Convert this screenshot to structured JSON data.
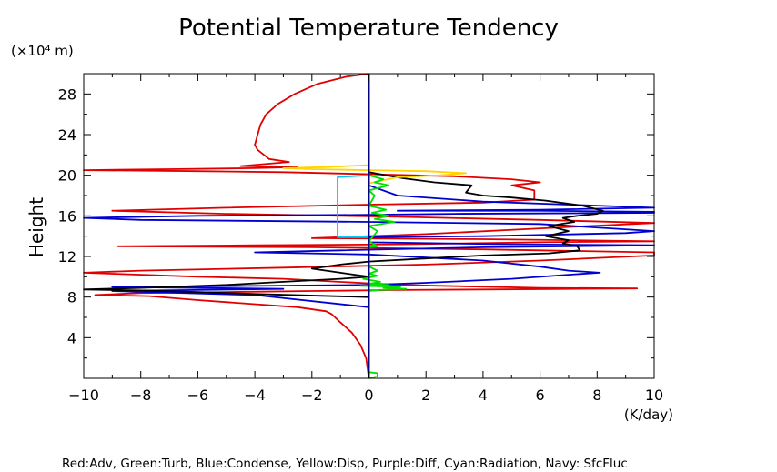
{
  "chart_data": {
    "type": "line",
    "title": "Potential Temperature Tendency",
    "y_unit_label": "(×10⁴ m)",
    "ylabel": "Height",
    "x_unit_label": "(K/day)",
    "xlim": [
      -10,
      10
    ],
    "ylim": [
      0,
      30
    ],
    "x_ticks": [
      -10,
      -8,
      -6,
      -4,
      -2,
      0,
      2,
      4,
      6,
      8,
      10
    ],
    "x_tick_labels": [
      "−10",
      "−8",
      "−6",
      "−4",
      "−2",
      "0",
      "2",
      "4",
      "6",
      "8",
      "10"
    ],
    "y_ticks": [
      4,
      8,
      12,
      16,
      20,
      24,
      28
    ],
    "y_tick_labels": [
      "4",
      "8",
      "12",
      "16",
      "20",
      "24",
      "28"
    ],
    "legend_text": "Red:Adv, Green:Turb, Blue:Condense, Yellow:Disp, Purple:Diff, Cyan:Radiation, Navy: SfcFluc",
    "series": [
      {
        "color": "#e00000",
        "points": [
          [
            0,
            0
          ],
          [
            -0.1,
            2
          ],
          [
            -0.3,
            3.3
          ],
          [
            -0.6,
            4.5
          ],
          [
            -1,
            5.5
          ],
          [
            -1.3,
            6.3
          ],
          [
            -1.5,
            6.6
          ],
          [
            -2.5,
            7
          ],
          [
            -4,
            7.3
          ],
          [
            -6,
            7.7
          ],
          [
            -7.7,
            8.1
          ],
          [
            -9.6,
            8.2
          ],
          [
            -8,
            8.4
          ],
          [
            -5,
            8.5
          ],
          [
            -2,
            8.6
          ],
          [
            1,
            8.7
          ],
          [
            4,
            8.75
          ],
          [
            7,
            8.8
          ],
          [
            9.4,
            8.85
          ],
          [
            6,
            8.9
          ],
          [
            1,
            9.2
          ],
          [
            -3,
            9.8
          ],
          [
            -6,
            10
          ],
          [
            -9,
            10.3
          ],
          [
            -10.4,
            10.4
          ],
          [
            -8,
            10.6
          ],
          [
            -3,
            10.9
          ],
          [
            2,
            11.2
          ],
          [
            6,
            11.6
          ],
          [
            10,
            12.1
          ],
          [
            11,
            12.4
          ],
          [
            4,
            12.7
          ],
          [
            -2,
            12.9
          ],
          [
            -8.8,
            13
          ],
          [
            -4,
            13.1
          ],
          [
            1,
            13.2
          ],
          [
            6,
            13.4
          ],
          [
            10.5,
            13.5
          ],
          [
            4,
            13.7
          ],
          [
            -2,
            13.8
          ],
          [
            2,
            14.2
          ],
          [
            7,
            14.9
          ],
          [
            11,
            15.3
          ],
          [
            6,
            15.6
          ],
          [
            1,
            15.9
          ],
          [
            -5,
            16.2
          ],
          [
            -9,
            16.5
          ],
          [
            -5,
            16.8
          ],
          [
            0,
            17.1
          ],
          [
            4,
            17.3
          ],
          [
            5.8,
            17.6
          ],
          [
            5.8,
            18.5
          ],
          [
            5,
            19
          ],
          [
            6,
            19.3
          ],
          [
            5,
            19.6
          ],
          [
            3,
            19.9
          ],
          [
            0,
            20.1
          ],
          [
            -3,
            20.3
          ],
          [
            -6,
            20.4
          ],
          [
            -10.2,
            20.5
          ],
          [
            -7,
            20.6
          ],
          [
            -4,
            20.7
          ],
          [
            -2.5,
            20.8
          ],
          [
            -4.5,
            20.9
          ],
          [
            -2.8,
            21.3
          ],
          [
            -3.5,
            21.6
          ],
          [
            -3.9,
            22.5
          ],
          [
            -4,
            23
          ],
          [
            -3.9,
            24
          ],
          [
            -3.8,
            25
          ],
          [
            -3.6,
            26
          ],
          [
            -3.2,
            27
          ],
          [
            -2.6,
            28
          ],
          [
            -1.8,
            29
          ],
          [
            -0.8,
            29.7
          ],
          [
            0,
            30
          ]
        ]
      },
      {
        "color": "#0000d0",
        "points": [
          [
            0,
            0
          ],
          [
            0,
            7
          ],
          [
            -4,
            8.2
          ],
          [
            -9,
            8.6
          ],
          [
            -3,
            8.8
          ],
          [
            -9,
            9
          ],
          [
            -4,
            9.1
          ],
          [
            0,
            9.2
          ],
          [
            2,
            9.4
          ],
          [
            5,
            9.8
          ],
          [
            7,
            10.2
          ],
          [
            8.1,
            10.4
          ],
          [
            7,
            10.6
          ],
          [
            6,
            11
          ],
          [
            4,
            11.6
          ],
          [
            0,
            12.2
          ],
          [
            -4,
            12.4
          ],
          [
            -1,
            12.6
          ],
          [
            4,
            12.9
          ],
          [
            11,
            13.1
          ],
          [
            5,
            13.2
          ],
          [
            0,
            13.4
          ],
          [
            0,
            13.9
          ],
          [
            4,
            14
          ],
          [
            9,
            14.3
          ],
          [
            11,
            14.5
          ],
          [
            6,
            15.2
          ],
          [
            0,
            15.4
          ],
          [
            -8,
            15.6
          ],
          [
            -11,
            15.8
          ],
          [
            -6,
            16
          ],
          [
            0,
            16.1
          ],
          [
            3,
            16.2
          ],
          [
            10,
            16.3
          ],
          [
            11,
            16.4
          ],
          [
            6,
            16.5
          ],
          [
            1,
            16.5
          ],
          [
            6,
            16.6
          ],
          [
            11,
            16.8
          ],
          [
            7,
            17.1
          ],
          [
            4,
            17.4
          ],
          [
            1,
            18
          ],
          [
            0,
            19
          ],
          [
            0,
            30
          ]
        ]
      },
      {
        "color": "#000000",
        "points": [
          [
            0,
            0
          ],
          [
            0,
            8
          ],
          [
            -4,
            8.3
          ],
          [
            -6,
            8.5
          ],
          [
            -8,
            8.65
          ],
          [
            -10,
            8.75
          ],
          [
            -8,
            8.9
          ],
          [
            -5,
            9.2
          ],
          [
            -3,
            9.5
          ],
          [
            -1,
            9.8
          ],
          [
            0,
            10
          ],
          [
            -1,
            10.4
          ],
          [
            -2,
            10.8
          ],
          [
            -1,
            11.2
          ],
          [
            0,
            11.5
          ],
          [
            2,
            11.8
          ],
          [
            4,
            12.1
          ],
          [
            6.3,
            12.3
          ],
          [
            7.4,
            12.6
          ],
          [
            7.3,
            13
          ],
          [
            6.8,
            13.3
          ],
          [
            7,
            13.6
          ],
          [
            6.2,
            14
          ],
          [
            7,
            14.5
          ],
          [
            6.3,
            15
          ],
          [
            7.2,
            15.4
          ],
          [
            6.8,
            15.8
          ],
          [
            7.3,
            16
          ],
          [
            8,
            16.2
          ],
          [
            8.2,
            16.5
          ],
          [
            7.5,
            17
          ],
          [
            6.2,
            17.5
          ],
          [
            5,
            17.8
          ],
          [
            4,
            18
          ],
          [
            3.4,
            18.3
          ],
          [
            3.6,
            19
          ],
          [
            2.3,
            19.3
          ],
          [
            1.2,
            19.7
          ],
          [
            0.6,
            20
          ],
          [
            0,
            20.3
          ],
          [
            0,
            30
          ]
        ]
      },
      {
        "color": "#ffd200",
        "points": [
          [
            0,
            0
          ],
          [
            0,
            19.2
          ],
          [
            1,
            19.8
          ],
          [
            2.5,
            20
          ],
          [
            3.4,
            20.2
          ],
          [
            2,
            20.4
          ],
          [
            0,
            20.5
          ],
          [
            -2,
            20.6
          ],
          [
            -3,
            20.7
          ],
          [
            -1.5,
            20.8
          ],
          [
            0,
            21
          ],
          [
            0,
            21.6
          ],
          [
            0,
            30
          ]
        ]
      },
      {
        "color": "#00c8ff",
        "points": [
          [
            0,
            0
          ],
          [
            0,
            13.9
          ],
          [
            -1.1,
            13.9
          ],
          [
            -1.1,
            19.8
          ],
          [
            -0.6,
            19.9
          ],
          [
            0,
            20
          ],
          [
            0,
            30
          ]
        ]
      },
      {
        "color": "#00e000",
        "points": [
          [
            0,
            0
          ],
          [
            0.3,
            0.2
          ],
          [
            0.3,
            0.5
          ],
          [
            0,
            0.6
          ],
          [
            0,
            8.6
          ],
          [
            0.4,
            8.7
          ],
          [
            1.3,
            8.8
          ],
          [
            0.5,
            8.9
          ],
          [
            1.1,
            9
          ],
          [
            -0.3,
            9.1
          ],
          [
            0.7,
            9.2
          ],
          [
            0,
            9.3
          ],
          [
            0.4,
            9.5
          ],
          [
            -0.2,
            9.8
          ],
          [
            0.3,
            10.1
          ],
          [
            0,
            10.3
          ],
          [
            0.3,
            10.6
          ],
          [
            0,
            11
          ],
          [
            0,
            12.9
          ],
          [
            0.3,
            13
          ],
          [
            0,
            13.5
          ],
          [
            0.3,
            14.5
          ],
          [
            0,
            15
          ],
          [
            0.9,
            15.4
          ],
          [
            0.2,
            15.7
          ],
          [
            0.7,
            16
          ],
          [
            0.1,
            16.3
          ],
          [
            0.6,
            16.6
          ],
          [
            0,
            17
          ],
          [
            0.2,
            18
          ],
          [
            0,
            18.5
          ],
          [
            0.7,
            19
          ],
          [
            0.2,
            19.3
          ],
          [
            0.5,
            19.6
          ],
          [
            0,
            20
          ],
          [
            0,
            30
          ]
        ]
      },
      {
        "color": "#000080",
        "points": [
          [
            0,
            0
          ],
          [
            0,
            30
          ]
        ]
      }
    ]
  }
}
